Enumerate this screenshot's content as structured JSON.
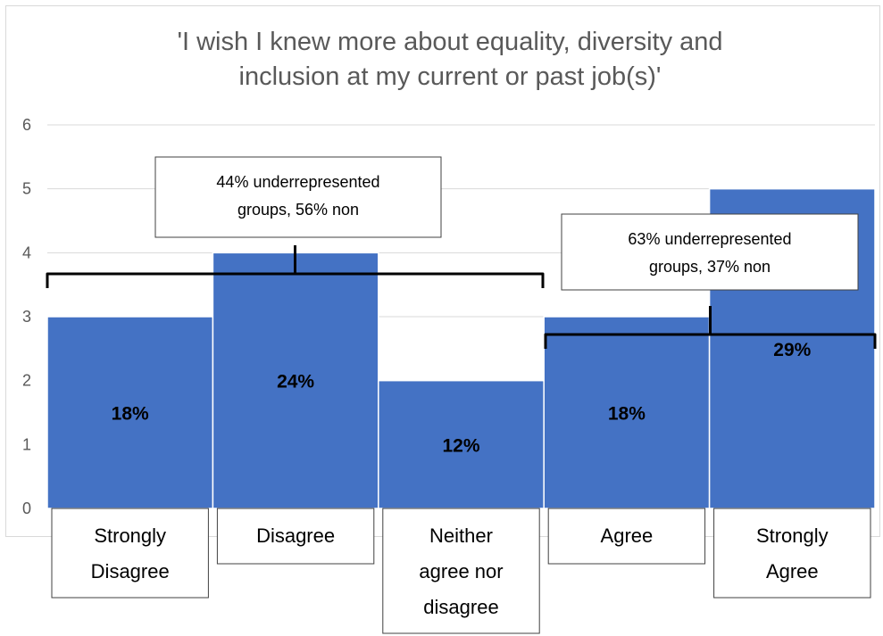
{
  "chart_data": {
    "type": "bar",
    "title_lines": [
      "'I wish I knew more about equality, diversity and",
      "inclusion at my current or past job(s)'"
    ],
    "categories": [
      {
        "lines": [
          "Strongly",
          "Disagree"
        ]
      },
      {
        "lines": [
          "Disagree"
        ]
      },
      {
        "lines": [
          "Neither",
          "agree nor",
          "disagree"
        ]
      },
      {
        "lines": [
          "Agree"
        ]
      },
      {
        "lines": [
          "Strongly",
          "Agree"
        ]
      }
    ],
    "values": [
      3,
      4,
      2,
      3,
      5
    ],
    "data_labels": [
      "18%",
      "24%",
      "12%",
      "18%",
      "29%"
    ],
    "ylim": [
      0,
      6
    ],
    "yticks": [
      "0",
      "1",
      "2",
      "3",
      "4",
      "5",
      "6"
    ],
    "grid": true,
    "bar_color": "#4472c4",
    "annotations": [
      {
        "lines": [
          "44% underrepresented",
          "groups, 56% non"
        ],
        "spans": [
          0,
          2
        ]
      },
      {
        "lines": [
          "63% underrepresented",
          "groups, 37% non"
        ],
        "spans": [
          3,
          4
        ]
      }
    ]
  }
}
